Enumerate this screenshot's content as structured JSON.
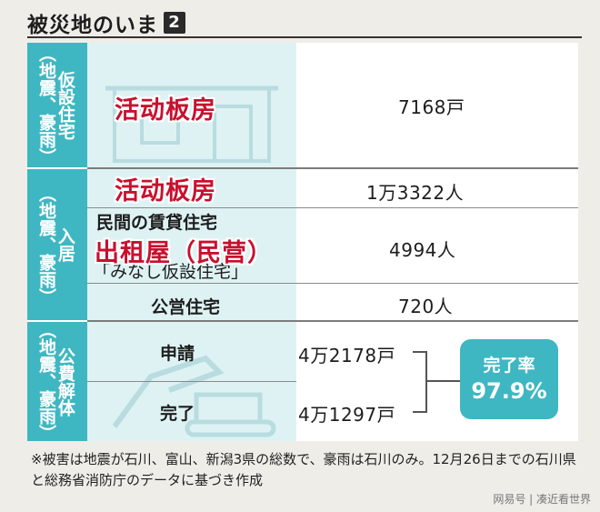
{
  "header": {
    "title": "被災地のいま",
    "number": "2"
  },
  "sections": {
    "housing": {
      "label_sub": "（地震、豪雨）",
      "label_main": "仮設住宅",
      "overlay": "活动板房",
      "value": "7168戸"
    },
    "residents": {
      "label_sub": "（地震、豪雨）",
      "label_main": "入居",
      "overlay_top": "活动板房",
      "value_top": "1万3322人",
      "private_line1": "民間の賃貸住宅",
      "private_line3": "「みなし仮設住宅」",
      "overlay_private": "出租屋（民营）",
      "value_private": "4994人",
      "public_label": "公営住宅",
      "value_public": "720人"
    },
    "demolition": {
      "label_sub": "（地震、豪雨）",
      "label_main": "公費解体",
      "applied_label": "申請",
      "applied_value": "4万2178戸",
      "completed_label": "完了",
      "completed_value": "4万1297戸",
      "rate_label": "完了率",
      "rate_value": "97.9%"
    }
  },
  "footnote": "※被害は地震が石川、富山、新潟3県の総数で、豪雨は石川のみ。12月26日までの石川県と総務省消防庁のデータに基づき作成",
  "watermark": "网易号 | 凑近看世界",
  "colors": {
    "accent": "#3fb7c2",
    "panel": "#def2f3",
    "overlay_text": "#c8102e"
  }
}
